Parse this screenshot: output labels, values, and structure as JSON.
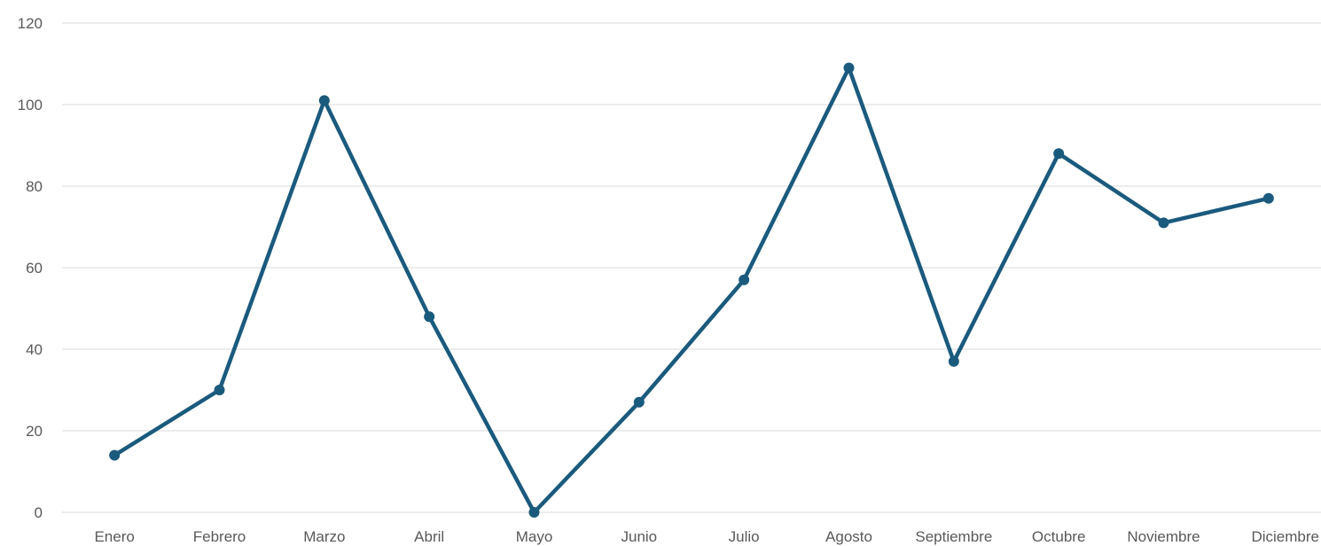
{
  "chart_data": {
    "type": "line",
    "categories": [
      "Enero",
      "Febrero",
      "Marzo",
      "Abril",
      "Mayo",
      "Junio",
      "Julio",
      "Agosto",
      "Septiembre",
      "Octubre",
      "Noviembre",
      "Diciembre"
    ],
    "series": [
      {
        "values": [
          14,
          30,
          101,
          48,
          0,
          27,
          57,
          109,
          37,
          88,
          71,
          77
        ],
        "color": "#1a5a7d"
      }
    ],
    "yticks": [
      0,
      20,
      40,
      60,
      80,
      100,
      120
    ],
    "ylim": [
      0,
      120
    ],
    "grid": true,
    "legend": "none"
  }
}
